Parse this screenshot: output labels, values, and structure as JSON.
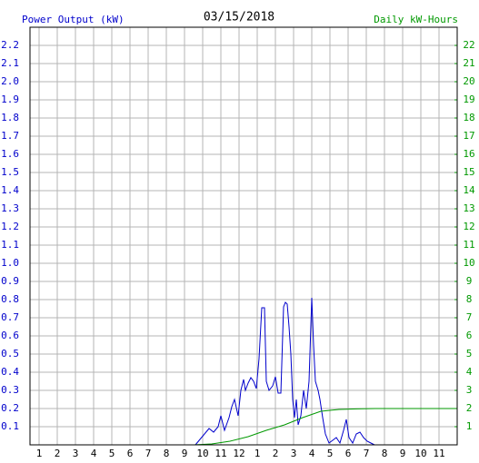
{
  "chart_data": {
    "type": "line",
    "title": "03/15/2018",
    "y_label": "Power Output (kW)",
    "y2_label": "Daily kW-Hours",
    "grid": true,
    "xlim": [
      0.5,
      24
    ],
    "xticks": [
      1,
      2,
      3,
      4,
      5,
      6,
      7,
      8,
      9,
      10,
      11,
      12,
      {
        "value": 13,
        "label": "1"
      },
      {
        "value": 14,
        "label": "2"
      },
      {
        "value": 15,
        "label": "3"
      },
      {
        "value": 16,
        "label": "4"
      },
      {
        "value": 17,
        "label": "5"
      },
      {
        "value": 18,
        "label": "6"
      },
      {
        "value": 19,
        "label": "7"
      },
      {
        "value": 20,
        "label": "8"
      },
      {
        "value": 21,
        "label": "9"
      },
      {
        "value": 22,
        "label": "10"
      },
      {
        "value": 23,
        "label": "11"
      }
    ],
    "ylim": [
      0,
      2.3
    ],
    "yticks": [
      0.1,
      0.2,
      0.3,
      0.4,
      0.5,
      0.6,
      0.7,
      0.8,
      0.9,
      {
        "value": 1,
        "label": "1.0"
      },
      1.1,
      1.2,
      1.3,
      1.4,
      1.5,
      1.6,
      1.7,
      1.8,
      1.9,
      {
        "value": 2,
        "label": "2.0"
      },
      2.1,
      2.2
    ],
    "y2lim": [
      0,
      23
    ],
    "y2ticks": [
      1,
      2,
      3,
      4,
      5,
      6,
      7,
      8,
      9,
      10,
      11,
      12,
      13,
      14,
      15,
      16,
      17,
      18,
      19,
      20,
      21,
      22
    ],
    "series": [
      {
        "color": "#0000cc",
        "x": [
          9.6,
          9.85,
          10.1,
          10.35,
          10.6,
          10.85,
          11.0,
          11.2,
          11.45,
          11.6,
          11.75,
          11.95,
          12.1,
          12.25,
          12.35,
          12.5,
          12.65,
          12.8,
          12.95,
          13.1,
          13.25,
          13.4,
          13.5,
          13.65,
          13.85,
          14.0,
          14.15,
          14.3,
          14.45,
          14.55,
          14.65,
          14.75,
          14.85,
          14.95,
          15.05,
          15.15,
          15.25,
          15.4,
          15.55,
          15.7,
          15.85,
          16.0,
          16.1,
          16.2,
          16.35,
          16.45,
          16.6,
          16.75,
          16.95,
          17.15,
          17.35,
          17.55,
          17.75,
          17.9,
          18.05,
          18.25,
          18.45,
          18.65,
          18.85,
          19.05,
          19.25,
          19.45
        ],
        "values": [
          0,
          0.03,
          0.06,
          0.09,
          0.07,
          0.1,
          0.16,
          0.08,
          0.15,
          0.21,
          0.25,
          0.16,
          0.3,
          0.36,
          0.3,
          0.34,
          0.37,
          0.35,
          0.31,
          0.475,
          0.755,
          0.755,
          0.35,
          0.3,
          0.325,
          0.375,
          0.285,
          0.285,
          0.76,
          0.785,
          0.775,
          0.65,
          0.5,
          0.25,
          0.15,
          0.25,
          0.11,
          0.16,
          0.3,
          0.2,
          0.35,
          0.81,
          0.55,
          0.35,
          0.3,
          0.25,
          0.15,
          0.06,
          0.01,
          0.025,
          0.04,
          0.01,
          0.08,
          0.14,
          0.04,
          0.01,
          0.06,
          0.07,
          0.04,
          0.02,
          0.01,
          0
        ]
      },
      {
        "color": "#009900",
        "axis": "y2",
        "x": [
          9.5,
          10.5,
          11.5,
          12.5,
          13.5,
          14.5,
          15.5,
          16.5,
          17.5,
          18.5,
          19.5,
          21,
          23.9
        ],
        "values": [
          0,
          0.05,
          0.2,
          0.45,
          0.8,
          1.1,
          1.5,
          1.85,
          1.95,
          1.98,
          2.0,
          2.0,
          2.0
        ]
      }
    ]
  }
}
